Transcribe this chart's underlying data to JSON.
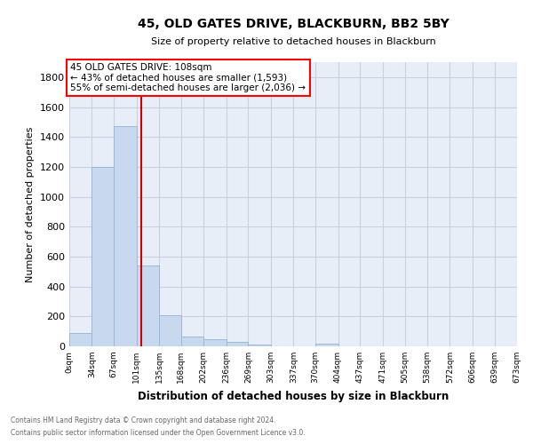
{
  "title": "45, OLD GATES DRIVE, BLACKBURN, BB2 5BY",
  "subtitle": "Size of property relative to detached houses in Blackburn",
  "xlabel": "Distribution of detached houses by size in Blackburn",
  "ylabel": "Number of detached properties",
  "bar_color": "#c8d8ee",
  "bar_edge_color": "#9ab8d8",
  "background_color": "#ffffff",
  "plot_bg_color": "#e8eef8",
  "grid_color": "#c8d0de",
  "vline_color": "#cc0000",
  "vline_x": 108,
  "bin_edges": [
    0,
    34,
    67,
    101,
    135,
    168,
    202,
    236,
    269,
    303,
    337,
    370,
    404,
    437,
    471,
    505,
    538,
    572,
    606,
    639,
    673
  ],
  "bin_labels": [
    "0sqm",
    "34sqm",
    "67sqm",
    "101sqm",
    "135sqm",
    "168sqm",
    "202sqm",
    "236sqm",
    "269sqm",
    "303sqm",
    "337sqm",
    "370sqm",
    "404sqm",
    "437sqm",
    "471sqm",
    "505sqm",
    "538sqm",
    "572sqm",
    "606sqm",
    "639sqm",
    "673sqm"
  ],
  "bar_heights": [
    90,
    1200,
    1470,
    540,
    205,
    65,
    48,
    28,
    10,
    0,
    0,
    15,
    0,
    0,
    0,
    0,
    0,
    0,
    0,
    0
  ],
  "ylim": [
    0,
    1900
  ],
  "yticks": [
    0,
    200,
    400,
    600,
    800,
    1000,
    1200,
    1400,
    1600,
    1800
  ],
  "annotation_title": "45 OLD GATES DRIVE: 108sqm",
  "annotation_line1": "← 43% of detached houses are smaller (1,593)",
  "annotation_line2": "55% of semi-detached houses are larger (2,036) →",
  "footer_line1": "Contains HM Land Registry data © Crown copyright and database right 2024.",
  "footer_line2": "Contains public sector information licensed under the Open Government Licence v3.0."
}
